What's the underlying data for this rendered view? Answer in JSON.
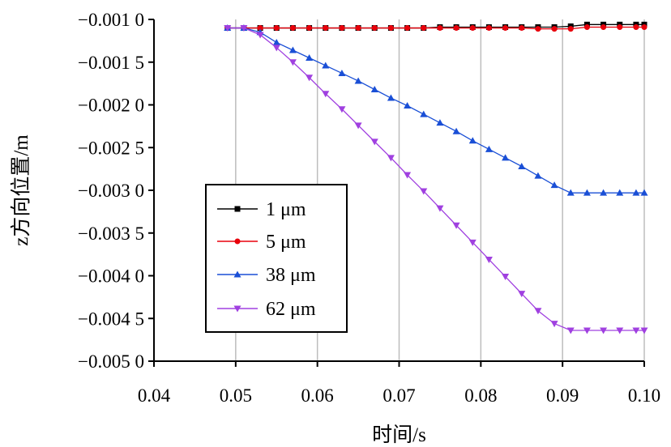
{
  "chart_data": {
    "type": "line",
    "title": "",
    "xlabel": "时间/s",
    "ylabel": "z方向位置/m",
    "xlim": [
      0.04,
      0.1
    ],
    "ylim": [
      -0.005,
      -0.001
    ],
    "xticks": [
      0.04,
      0.05,
      0.06,
      0.07,
      0.08,
      0.09,
      0.1
    ],
    "xtick_labels": [
      "0.04",
      "0.05",
      "0.06",
      "0.07",
      "0.08",
      "0.09",
      "0.10"
    ],
    "yticks": [
      -0.001,
      -0.0015,
      -0.002,
      -0.0025,
      -0.003,
      -0.0035,
      -0.004,
      -0.0045,
      -0.005
    ],
    "ytick_labels": [
      "−0.001 0",
      "−0.001 5",
      "−0.002 0",
      "−0.002 5",
      "−0.003 0",
      "−0.003 5",
      "−0.004 0",
      "−0.004 5",
      "−0.005 0"
    ],
    "grid": "vertical",
    "legend_position": "lower-left",
    "series": [
      {
        "name": "1 μm",
        "color": "#000000",
        "marker": "square",
        "x": [
          0.049,
          0.051,
          0.053,
          0.055,
          0.057,
          0.059,
          0.061,
          0.063,
          0.065,
          0.067,
          0.069,
          0.071,
          0.073,
          0.075,
          0.077,
          0.079,
          0.081,
          0.083,
          0.085,
          0.087,
          0.089,
          0.091,
          0.093,
          0.095,
          0.097,
          0.099,
          0.1
        ],
        "y": [
          -0.0011,
          -0.0011,
          -0.0011,
          -0.0011,
          -0.0011,
          -0.0011,
          -0.0011,
          -0.0011,
          -0.0011,
          -0.0011,
          -0.0011,
          -0.0011,
          -0.0011,
          -0.00109,
          -0.00109,
          -0.00109,
          -0.00109,
          -0.00109,
          -0.00109,
          -0.00109,
          -0.00109,
          -0.00108,
          -0.00106,
          -0.00106,
          -0.00106,
          -0.00106,
          -0.00106
        ]
      },
      {
        "name": "5 μm",
        "color": "#e8000b",
        "marker": "circle",
        "x": [
          0.049,
          0.051,
          0.053,
          0.055,
          0.057,
          0.059,
          0.061,
          0.063,
          0.065,
          0.067,
          0.069,
          0.071,
          0.073,
          0.075,
          0.077,
          0.079,
          0.081,
          0.083,
          0.085,
          0.087,
          0.089,
          0.091,
          0.093,
          0.095,
          0.097,
          0.099,
          0.1
        ],
        "y": [
          -0.0011,
          -0.0011,
          -0.0011,
          -0.0011,
          -0.0011,
          -0.0011,
          -0.0011,
          -0.0011,
          -0.0011,
          -0.0011,
          -0.0011,
          -0.0011,
          -0.0011,
          -0.0011,
          -0.0011,
          -0.0011,
          -0.0011,
          -0.0011,
          -0.0011,
          -0.00111,
          -0.00111,
          -0.00111,
          -0.00109,
          -0.00109,
          -0.00109,
          -0.00109,
          -0.00109
        ]
      },
      {
        "name": "38 μm",
        "color": "#1a4fd6",
        "marker": "triangle-up",
        "x": [
          0.049,
          0.051,
          0.053,
          0.055,
          0.057,
          0.059,
          0.061,
          0.063,
          0.065,
          0.067,
          0.069,
          0.071,
          0.073,
          0.075,
          0.077,
          0.079,
          0.081,
          0.083,
          0.085,
          0.087,
          0.089,
          0.091,
          0.093,
          0.095,
          0.097,
          0.099,
          0.1
        ],
        "y": [
          -0.0011,
          -0.0011,
          -0.00115,
          -0.00127,
          -0.00136,
          -0.00145,
          -0.00154,
          -0.00163,
          -0.00172,
          -0.00182,
          -0.00192,
          -0.00201,
          -0.00211,
          -0.00221,
          -0.00231,
          -0.00242,
          -0.00252,
          -0.00262,
          -0.00272,
          -0.00283,
          -0.00294,
          -0.00303,
          -0.00303,
          -0.00303,
          -0.00303,
          -0.00303,
          -0.00303
        ]
      },
      {
        "name": "62 μm",
        "color": "#a040e0",
        "marker": "triangle-down",
        "x": [
          0.049,
          0.051,
          0.053,
          0.055,
          0.057,
          0.059,
          0.061,
          0.063,
          0.065,
          0.067,
          0.069,
          0.071,
          0.073,
          0.075,
          0.077,
          0.079,
          0.081,
          0.083,
          0.085,
          0.087,
          0.089,
          0.091,
          0.093,
          0.095,
          0.097,
          0.099,
          0.1
        ],
        "y": [
          -0.0011,
          -0.0011,
          -0.00118,
          -0.00133,
          -0.0015,
          -0.00168,
          -0.00187,
          -0.00205,
          -0.00224,
          -0.00243,
          -0.00262,
          -0.00282,
          -0.00301,
          -0.00321,
          -0.00341,
          -0.00361,
          -0.00381,
          -0.00401,
          -0.00421,
          -0.00441,
          -0.00456,
          -0.00464,
          -0.00464,
          -0.00464,
          -0.00464,
          -0.00464,
          -0.00464
        ]
      }
    ]
  }
}
